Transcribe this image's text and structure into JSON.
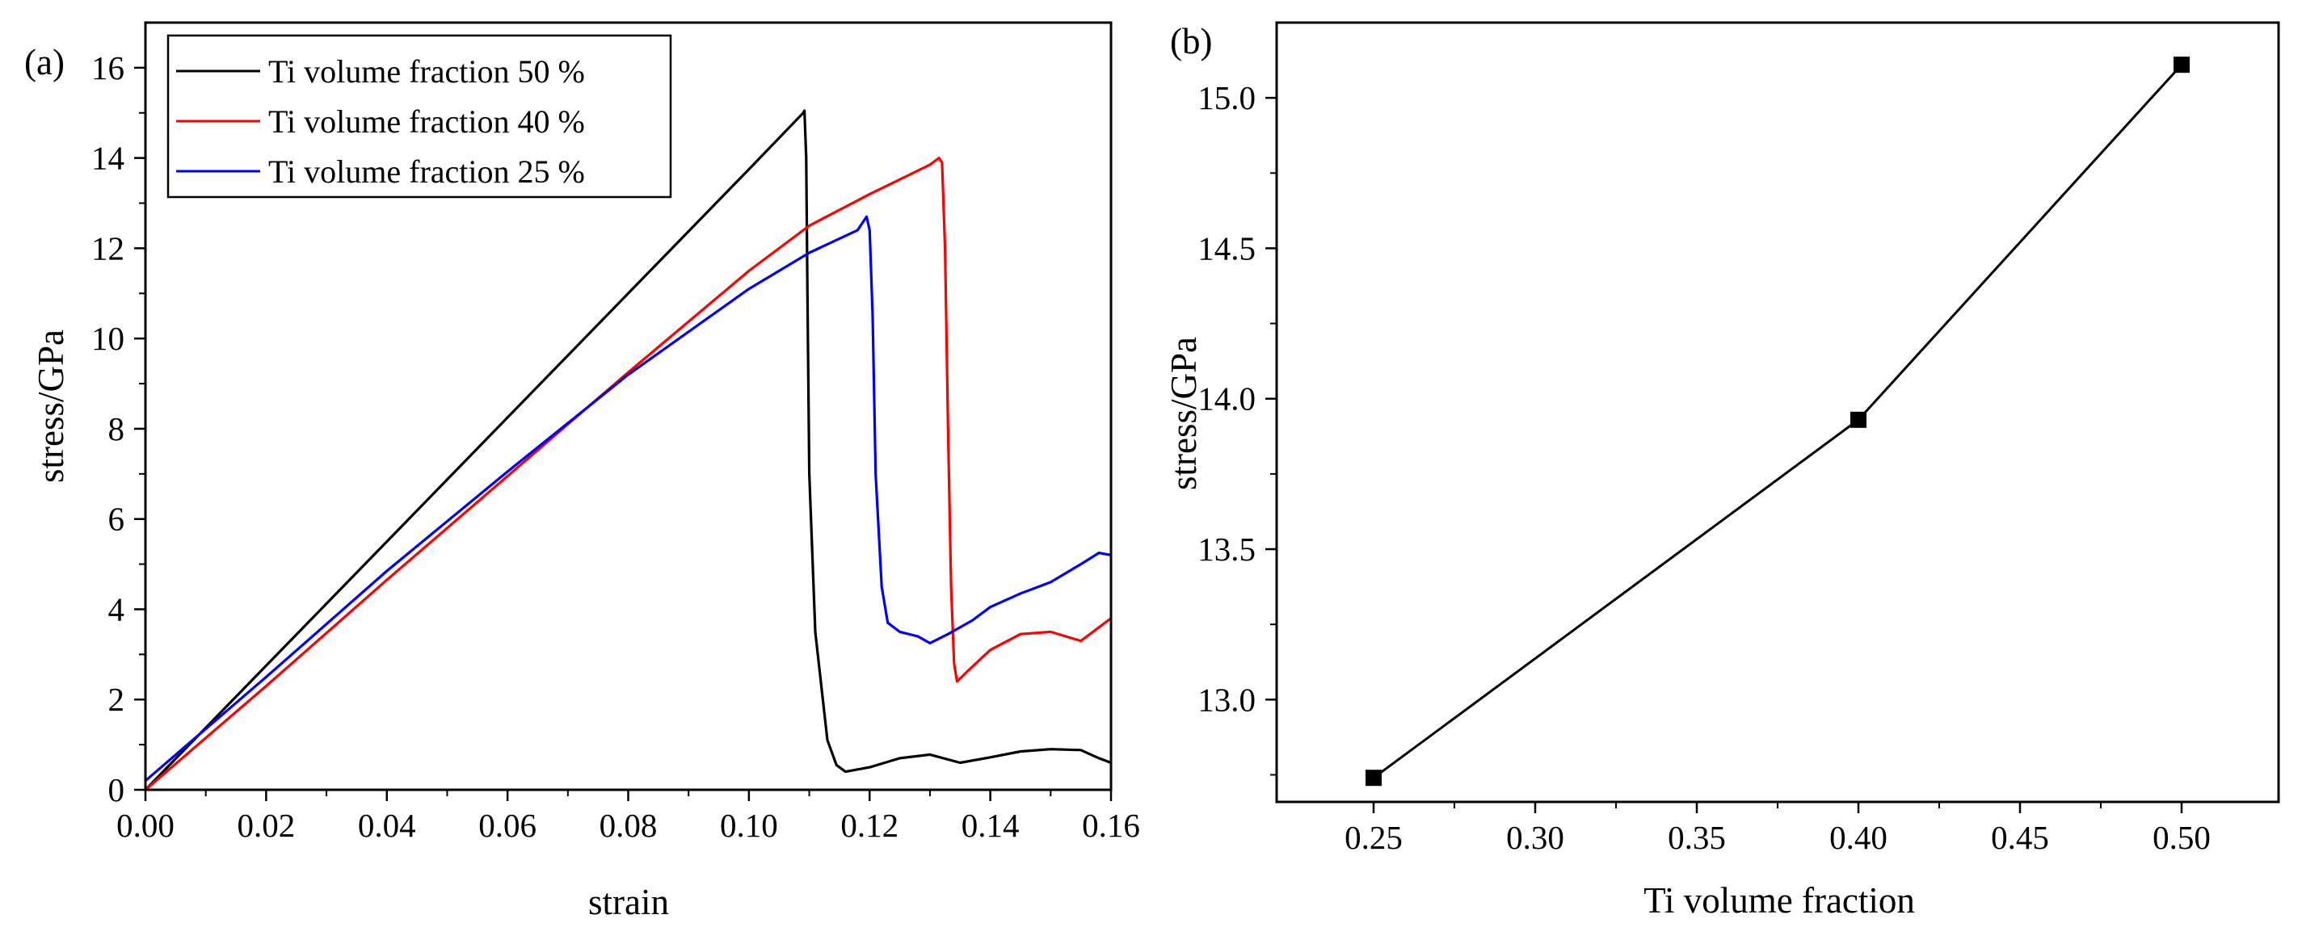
{
  "chart_data": [
    {
      "panel_label": "(a)",
      "type": "line",
      "xlabel": "strain",
      "ylabel": "stress/GPa",
      "xlim": [
        0,
        0.16
      ],
      "ylim": [
        0,
        17
      ],
      "x_ticks": [
        "0.00",
        "0.02",
        "0.04",
        "0.06",
        "0.08",
        "0.10",
        "0.12",
        "0.14",
        "0.16"
      ],
      "y_ticks": [
        "0",
        "2",
        "4",
        "6",
        "8",
        "10",
        "12",
        "14",
        "16"
      ],
      "legend_position": "top-left",
      "series": [
        {
          "name": "Ti volume fraction 50 %",
          "color": "#000000",
          "points": [
            [
              0,
              0
            ],
            [
              0.02,
              2.75
            ],
            [
              0.04,
              5.5
            ],
            [
              0.06,
              8.25
            ],
            [
              0.08,
              11
            ],
            [
              0.1,
              13.75
            ],
            [
              0.109,
              15
            ],
            [
              0.1092,
              15.05
            ],
            [
              0.1095,
              14.0
            ],
            [
              0.1097,
              11
            ],
            [
              0.11,
              7
            ],
            [
              0.111,
              3.5
            ],
            [
              0.113,
              1.1
            ],
            [
              0.1145,
              0.55
            ],
            [
              0.116,
              0.4
            ],
            [
              0.12,
              0.5
            ],
            [
              0.125,
              0.7
            ],
            [
              0.13,
              0.78
            ],
            [
              0.135,
              0.6
            ],
            [
              0.14,
              0.72
            ],
            [
              0.145,
              0.85
            ],
            [
              0.15,
              0.9
            ],
            [
              0.155,
              0.88
            ],
            [
              0.158,
              0.7
            ],
            [
              0.16,
              0.6
            ]
          ]
        },
        {
          "name": "Ti volume fraction 40 %",
          "color": "#ff0000",
          "points": [
            [
              0,
              0
            ],
            [
              0.02,
              2.3
            ],
            [
              0.04,
              4.65
            ],
            [
              0.06,
              6.95
            ],
            [
              0.08,
              9.25
            ],
            [
              0.1,
              11.5
            ],
            [
              0.11,
              12.5
            ],
            [
              0.12,
              13.2
            ],
            [
              0.13,
              13.85
            ],
            [
              0.1315,
              14.0
            ],
            [
              0.132,
              13.9
            ],
            [
              0.1325,
              12
            ],
            [
              0.133,
              8
            ],
            [
              0.1335,
              4.5
            ],
            [
              0.134,
              2.8
            ],
            [
              0.1345,
              2.4
            ],
            [
              0.136,
              2.6
            ],
            [
              0.14,
              3.1
            ],
            [
              0.145,
              3.45
            ],
            [
              0.15,
              3.5
            ],
            [
              0.155,
              3.3
            ],
            [
              0.158,
              3.6
            ],
            [
              0.16,
              3.8
            ]
          ]
        },
        {
          "name": "Ti volume fraction 25 %",
          "color": "#0000ff",
          "points": [
            [
              0,
              0.2
            ],
            [
              0.02,
              2.5
            ],
            [
              0.04,
              4.85
            ],
            [
              0.06,
              7.05
            ],
            [
              0.08,
              9.2
            ],
            [
              0.1,
              11.1
            ],
            [
              0.11,
              11.9
            ],
            [
              0.118,
              12.4
            ],
            [
              0.1195,
              12.7
            ],
            [
              0.12,
              12.4
            ],
            [
              0.1205,
              10.5
            ],
            [
              0.121,
              7
            ],
            [
              0.122,
              4.5
            ],
            [
              0.123,
              3.7
            ],
            [
              0.125,
              3.5
            ],
            [
              0.128,
              3.4
            ],
            [
              0.13,
              3.25
            ],
            [
              0.133,
              3.45
            ],
            [
              0.137,
              3.75
            ],
            [
              0.14,
              4.05
            ],
            [
              0.145,
              4.35
            ],
            [
              0.15,
              4.6
            ],
            [
              0.155,
              5.0
            ],
            [
              0.158,
              5.25
            ],
            [
              0.16,
              5.2
            ]
          ]
        }
      ]
    },
    {
      "panel_label": "(b)",
      "type": "line",
      "xlabel": "Ti volume fraction",
      "ylabel": "stress/GPa",
      "xlim": [
        0.22,
        0.53
      ],
      "ylim": [
        12.66,
        15.25
      ],
      "x_ticks": [
        "0.25",
        "0.30",
        "0.35",
        "0.40",
        "0.45",
        "0.50"
      ],
      "y_ticks": [
        "13.0",
        "13.5",
        "14.0",
        "14.5",
        "15.0"
      ],
      "marker": "square",
      "color": "#000000",
      "x": [
        0.25,
        0.4,
        0.5
      ],
      "y": [
        12.74,
        13.93,
        15.11
      ]
    }
  ]
}
